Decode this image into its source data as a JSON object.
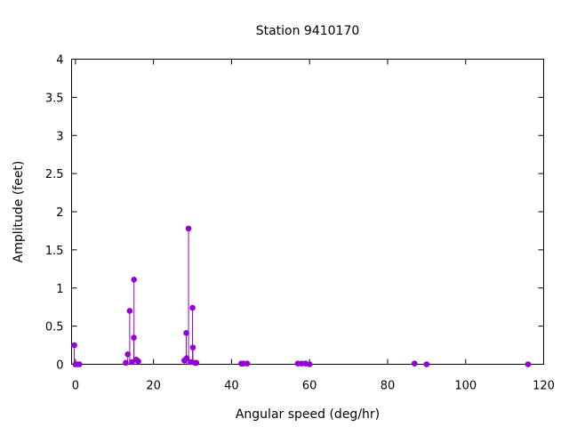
{
  "chart_data": {
    "type": "scatter",
    "style": "impulses with points",
    "title": "Station 9410170",
    "xlabel": "Angular speed (deg/hr)",
    "ylabel": "Amplitude (feet)",
    "xlim": [
      -1,
      120
    ],
    "ylim": [
      0,
      4
    ],
    "xticks": [
      0,
      20,
      40,
      60,
      80,
      100,
      120
    ],
    "yticks": [
      0,
      0.5,
      1,
      1.5,
      2,
      2.5,
      3,
      3.5,
      4
    ],
    "ytick_labels": [
      "0",
      "0.5",
      "1",
      "1.5",
      "2",
      "2.5",
      "3",
      "3.5",
      "4"
    ],
    "grid": false,
    "legend": "none",
    "color": "#9400d3",
    "points": [
      {
        "x": -0.3,
        "y": 0.25
      },
      {
        "x": 0.0,
        "y": 0.0
      },
      {
        "x": 0.5,
        "y": 0.0
      },
      {
        "x": 1.0,
        "y": 0.0
      },
      {
        "x": 12.9,
        "y": 0.02
      },
      {
        "x": 13.4,
        "y": 0.13
      },
      {
        "x": 13.9,
        "y": 0.7
      },
      {
        "x": 14.5,
        "y": 0.03
      },
      {
        "x": 14.96,
        "y": 0.35
      },
      {
        "x": 15.0,
        "y": 1.11
      },
      {
        "x": 15.6,
        "y": 0.06
      },
      {
        "x": 16.1,
        "y": 0.04
      },
      {
        "x": 27.9,
        "y": 0.05
      },
      {
        "x": 28.4,
        "y": 0.41
      },
      {
        "x": 28.5,
        "y": 0.08
      },
      {
        "x": 28.98,
        "y": 1.78
      },
      {
        "x": 29.5,
        "y": 0.03
      },
      {
        "x": 30.0,
        "y": 0.74
      },
      {
        "x": 30.1,
        "y": 0.22
      },
      {
        "x": 30.6,
        "y": 0.02
      },
      {
        "x": 31.0,
        "y": 0.02
      },
      {
        "x": 42.5,
        "y": 0.01
      },
      {
        "x": 43.0,
        "y": 0.01
      },
      {
        "x": 44.0,
        "y": 0.01
      },
      {
        "x": 57.0,
        "y": 0.01
      },
      {
        "x": 58.0,
        "y": 0.01
      },
      {
        "x": 59.0,
        "y": 0.01
      },
      {
        "x": 60.0,
        "y": 0.0
      },
      {
        "x": 86.9,
        "y": 0.01
      },
      {
        "x": 90.0,
        "y": 0.0
      },
      {
        "x": 116.0,
        "y": 0.0
      }
    ]
  }
}
